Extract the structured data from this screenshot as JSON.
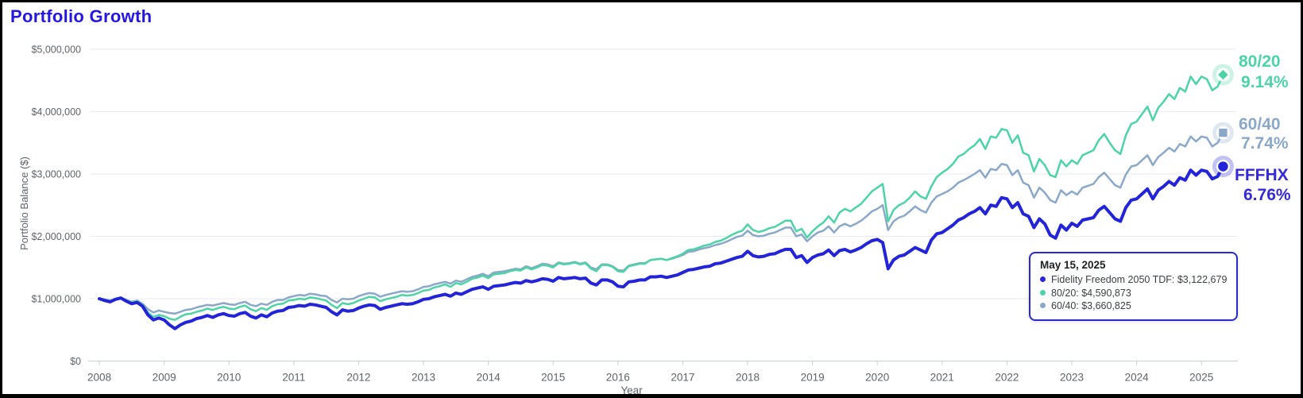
{
  "title": "Portfolio Growth",
  "tooltip": {
    "date": "May 15, 2025",
    "rows": [
      {
        "color": "#2a25d9",
        "text": "Fidelity Freedom 2050 TDF: $3,122,679"
      },
      {
        "color": "#4cd4a6",
        "text": "80/20: $4,590,873"
      },
      {
        "color": "#8ba8c9",
        "text": "60/40: $3,660,825"
      }
    ]
  },
  "chart_data": {
    "type": "line",
    "title": "Portfolio Growth",
    "xlabel": "Year",
    "ylabel": "Portfolio Balance ($)",
    "x_range": [
      "Jan 2008",
      "May 15, 2025"
    ],
    "x_tick_years": [
      2008,
      2009,
      2010,
      2011,
      2012,
      2013,
      2014,
      2015,
      2016,
      2017,
      2018,
      2019,
      2020,
      2021,
      2022,
      2023,
      2024,
      2025
    ],
    "points_per_year": 12,
    "ylim": [
      0,
      5000000
    ],
    "y_ticks": [
      {
        "label": "$0",
        "value_m": 0
      },
      {
        "label": "$1,000,000",
        "value_m": 1
      },
      {
        "label": "$2,000,000",
        "value_m": 2
      },
      {
        "label": "$3,000,000",
        "value_m": 3
      },
      {
        "label": "$4,000,000",
        "value_m": 4
      },
      {
        "label": "$5,000,000",
        "value_m": 5
      }
    ],
    "grid": true,
    "legend_position": "end-of-line-labels",
    "values_unit": "millions_usd_monthly_from_jan_2008",
    "series": [
      {
        "name": "FFFHX",
        "full_name": "Fidelity Freedom 2050 TDF",
        "cagr": "6.76%",
        "final_value": "$3,122,679",
        "color": "#2323d9",
        "marker": "circle",
        "values_millions": [
          1.0,
          0.97,
          0.95,
          0.99,
          1.01,
          0.96,
          0.92,
          0.94,
          0.88,
          0.74,
          0.66,
          0.69,
          0.66,
          0.58,
          0.52,
          0.58,
          0.62,
          0.64,
          0.68,
          0.7,
          0.73,
          0.7,
          0.74,
          0.76,
          0.73,
          0.72,
          0.76,
          0.78,
          0.72,
          0.69,
          0.74,
          0.71,
          0.77,
          0.8,
          0.81,
          0.86,
          0.87,
          0.89,
          0.88,
          0.91,
          0.9,
          0.88,
          0.86,
          0.79,
          0.74,
          0.82,
          0.8,
          0.81,
          0.85,
          0.88,
          0.9,
          0.89,
          0.83,
          0.86,
          0.88,
          0.9,
          0.92,
          0.91,
          0.92,
          0.95,
          0.99,
          1.0,
          1.03,
          1.05,
          1.07,
          1.04,
          1.09,
          1.07,
          1.11,
          1.15,
          1.17,
          1.19,
          1.15,
          1.2,
          1.21,
          1.22,
          1.24,
          1.26,
          1.25,
          1.29,
          1.27,
          1.29,
          1.32,
          1.31,
          1.28,
          1.34,
          1.32,
          1.33,
          1.34,
          1.32,
          1.33,
          1.25,
          1.22,
          1.3,
          1.3,
          1.27,
          1.2,
          1.19,
          1.27,
          1.28,
          1.3,
          1.3,
          1.35,
          1.35,
          1.36,
          1.34,
          1.36,
          1.38,
          1.42,
          1.46,
          1.47,
          1.49,
          1.51,
          1.52,
          1.56,
          1.57,
          1.6,
          1.63,
          1.66,
          1.68,
          1.76,
          1.69,
          1.67,
          1.68,
          1.71,
          1.72,
          1.76,
          1.79,
          1.79,
          1.66,
          1.69,
          1.58,
          1.66,
          1.7,
          1.72,
          1.78,
          1.69,
          1.77,
          1.79,
          1.75,
          1.78,
          1.82,
          1.88,
          1.93,
          1.95,
          1.9,
          1.48,
          1.62,
          1.68,
          1.7,
          1.76,
          1.82,
          1.78,
          1.74,
          1.94,
          2.04,
          2.06,
          2.12,
          2.18,
          2.26,
          2.3,
          2.36,
          2.4,
          2.46,
          2.36,
          2.5,
          2.48,
          2.62,
          2.6,
          2.46,
          2.54,
          2.36,
          2.32,
          2.14,
          2.28,
          2.2,
          2.02,
          1.97,
          2.18,
          2.1,
          2.21,
          2.16,
          2.26,
          2.28,
          2.3,
          2.42,
          2.48,
          2.38,
          2.28,
          2.24,
          2.46,
          2.58,
          2.6,
          2.68,
          2.76,
          2.6,
          2.74,
          2.8,
          2.88,
          2.82,
          2.94,
          2.9,
          3.06,
          2.98,
          3.06,
          3.04,
          2.92,
          2.96,
          3.12
        ]
      },
      {
        "name": "80/20",
        "cagr": "9.14%",
        "final_value": "$4,590,873",
        "color": "#4cd4a6",
        "marker": "diamond",
        "values_millions": [
          1.0,
          0.98,
          0.96,
          1.0,
          1.02,
          0.97,
          0.94,
          0.96,
          0.9,
          0.78,
          0.71,
          0.74,
          0.72,
          0.68,
          0.66,
          0.71,
          0.75,
          0.76,
          0.79,
          0.81,
          0.84,
          0.82,
          0.85,
          0.87,
          0.84,
          0.83,
          0.87,
          0.89,
          0.83,
          0.8,
          0.85,
          0.82,
          0.88,
          0.91,
          0.92,
          0.97,
          0.98,
          1.0,
          0.99,
          1.02,
          1.01,
          0.99,
          0.97,
          0.9,
          0.85,
          0.93,
          0.91,
          0.93,
          0.97,
          1.0,
          1.03,
          1.02,
          0.96,
          0.99,
          1.01,
          1.03,
          1.06,
          1.05,
          1.06,
          1.09,
          1.13,
          1.14,
          1.18,
          1.2,
          1.23,
          1.19,
          1.25,
          1.23,
          1.27,
          1.32,
          1.34,
          1.37,
          1.33,
          1.39,
          1.4,
          1.41,
          1.44,
          1.46,
          1.45,
          1.5,
          1.47,
          1.5,
          1.54,
          1.53,
          1.5,
          1.57,
          1.55,
          1.56,
          1.58,
          1.55,
          1.57,
          1.48,
          1.44,
          1.54,
          1.54,
          1.51,
          1.44,
          1.43,
          1.52,
          1.54,
          1.56,
          1.56,
          1.62,
          1.63,
          1.64,
          1.62,
          1.65,
          1.68,
          1.72,
          1.78,
          1.79,
          1.82,
          1.85,
          1.87,
          1.91,
          1.93,
          1.97,
          2.02,
          2.06,
          2.09,
          2.19,
          2.1,
          2.07,
          2.09,
          2.13,
          2.15,
          2.2,
          2.25,
          2.25,
          2.08,
          2.12,
          1.98,
          2.08,
          2.16,
          2.22,
          2.32,
          2.22,
          2.38,
          2.44,
          2.4,
          2.46,
          2.52,
          2.62,
          2.72,
          2.78,
          2.84,
          2.24,
          2.42,
          2.5,
          2.54,
          2.62,
          2.72,
          2.64,
          2.6,
          2.8,
          2.95,
          3.02,
          3.08,
          3.16,
          3.28,
          3.32,
          3.4,
          3.46,
          3.56,
          3.4,
          3.6,
          3.58,
          3.72,
          3.7,
          3.5,
          3.62,
          3.34,
          3.3,
          3.04,
          3.24,
          3.14,
          2.98,
          2.95,
          3.22,
          3.12,
          3.22,
          3.16,
          3.3,
          3.34,
          3.38,
          3.54,
          3.64,
          3.5,
          3.38,
          3.32,
          3.62,
          3.8,
          3.84,
          3.96,
          4.08,
          3.86,
          4.06,
          4.16,
          4.28,
          4.2,
          4.38,
          4.32,
          4.56,
          4.44,
          4.56,
          4.52,
          4.34,
          4.4,
          4.59
        ]
      },
      {
        "name": "60/40",
        "cagr": "7.74%",
        "final_value": "$3,660,825",
        "color": "#8ba8c9",
        "marker": "square",
        "values_millions": [
          1.0,
          0.99,
          0.97,
          1.0,
          1.02,
          0.98,
          0.95,
          0.97,
          0.92,
          0.83,
          0.78,
          0.81,
          0.79,
          0.77,
          0.76,
          0.79,
          0.82,
          0.83,
          0.86,
          0.88,
          0.9,
          0.89,
          0.91,
          0.93,
          0.91,
          0.9,
          0.93,
          0.95,
          0.9,
          0.88,
          0.92,
          0.9,
          0.95,
          0.98,
          0.98,
          1.02,
          1.04,
          1.06,
          1.05,
          1.08,
          1.07,
          1.05,
          1.04,
          0.98,
          0.94,
          1.0,
          0.99,
          1.0,
          1.04,
          1.07,
          1.09,
          1.08,
          1.03,
          1.06,
          1.08,
          1.1,
          1.12,
          1.11,
          1.12,
          1.15,
          1.19,
          1.2,
          1.23,
          1.25,
          1.27,
          1.24,
          1.29,
          1.27,
          1.31,
          1.35,
          1.37,
          1.4,
          1.36,
          1.42,
          1.43,
          1.44,
          1.46,
          1.48,
          1.47,
          1.52,
          1.49,
          1.52,
          1.56,
          1.55,
          1.52,
          1.58,
          1.56,
          1.57,
          1.59,
          1.56,
          1.58,
          1.5,
          1.47,
          1.55,
          1.55,
          1.52,
          1.46,
          1.45,
          1.53,
          1.55,
          1.57,
          1.57,
          1.62,
          1.63,
          1.64,
          1.62,
          1.64,
          1.67,
          1.7,
          1.75,
          1.76,
          1.79,
          1.81,
          1.83,
          1.86,
          1.88,
          1.91,
          1.95,
          1.99,
          2.01,
          2.09,
          2.02,
          2.0,
          2.01,
          2.04,
          2.06,
          2.1,
          2.14,
          2.14,
          2.0,
          2.03,
          1.92,
          2.0,
          2.06,
          2.09,
          2.16,
          2.06,
          2.16,
          2.2,
          2.16,
          2.2,
          2.25,
          2.32,
          2.4,
          2.44,
          2.5,
          2.1,
          2.24,
          2.3,
          2.33,
          2.4,
          2.48,
          2.42,
          2.38,
          2.54,
          2.64,
          2.68,
          2.72,
          2.78,
          2.86,
          2.9,
          2.95,
          3.0,
          3.06,
          2.94,
          3.08,
          3.06,
          3.16,
          3.14,
          2.98,
          3.06,
          2.86,
          2.82,
          2.62,
          2.78,
          2.7,
          2.58,
          2.54,
          2.74,
          2.66,
          2.72,
          2.67,
          2.78,
          2.81,
          2.84,
          2.95,
          3.02,
          2.92,
          2.82,
          2.78,
          2.99,
          3.12,
          3.14,
          3.22,
          3.3,
          3.14,
          3.27,
          3.34,
          3.42,
          3.36,
          3.48,
          3.44,
          3.6,
          3.52,
          3.6,
          3.58,
          3.44,
          3.5,
          3.66
        ]
      }
    ]
  }
}
